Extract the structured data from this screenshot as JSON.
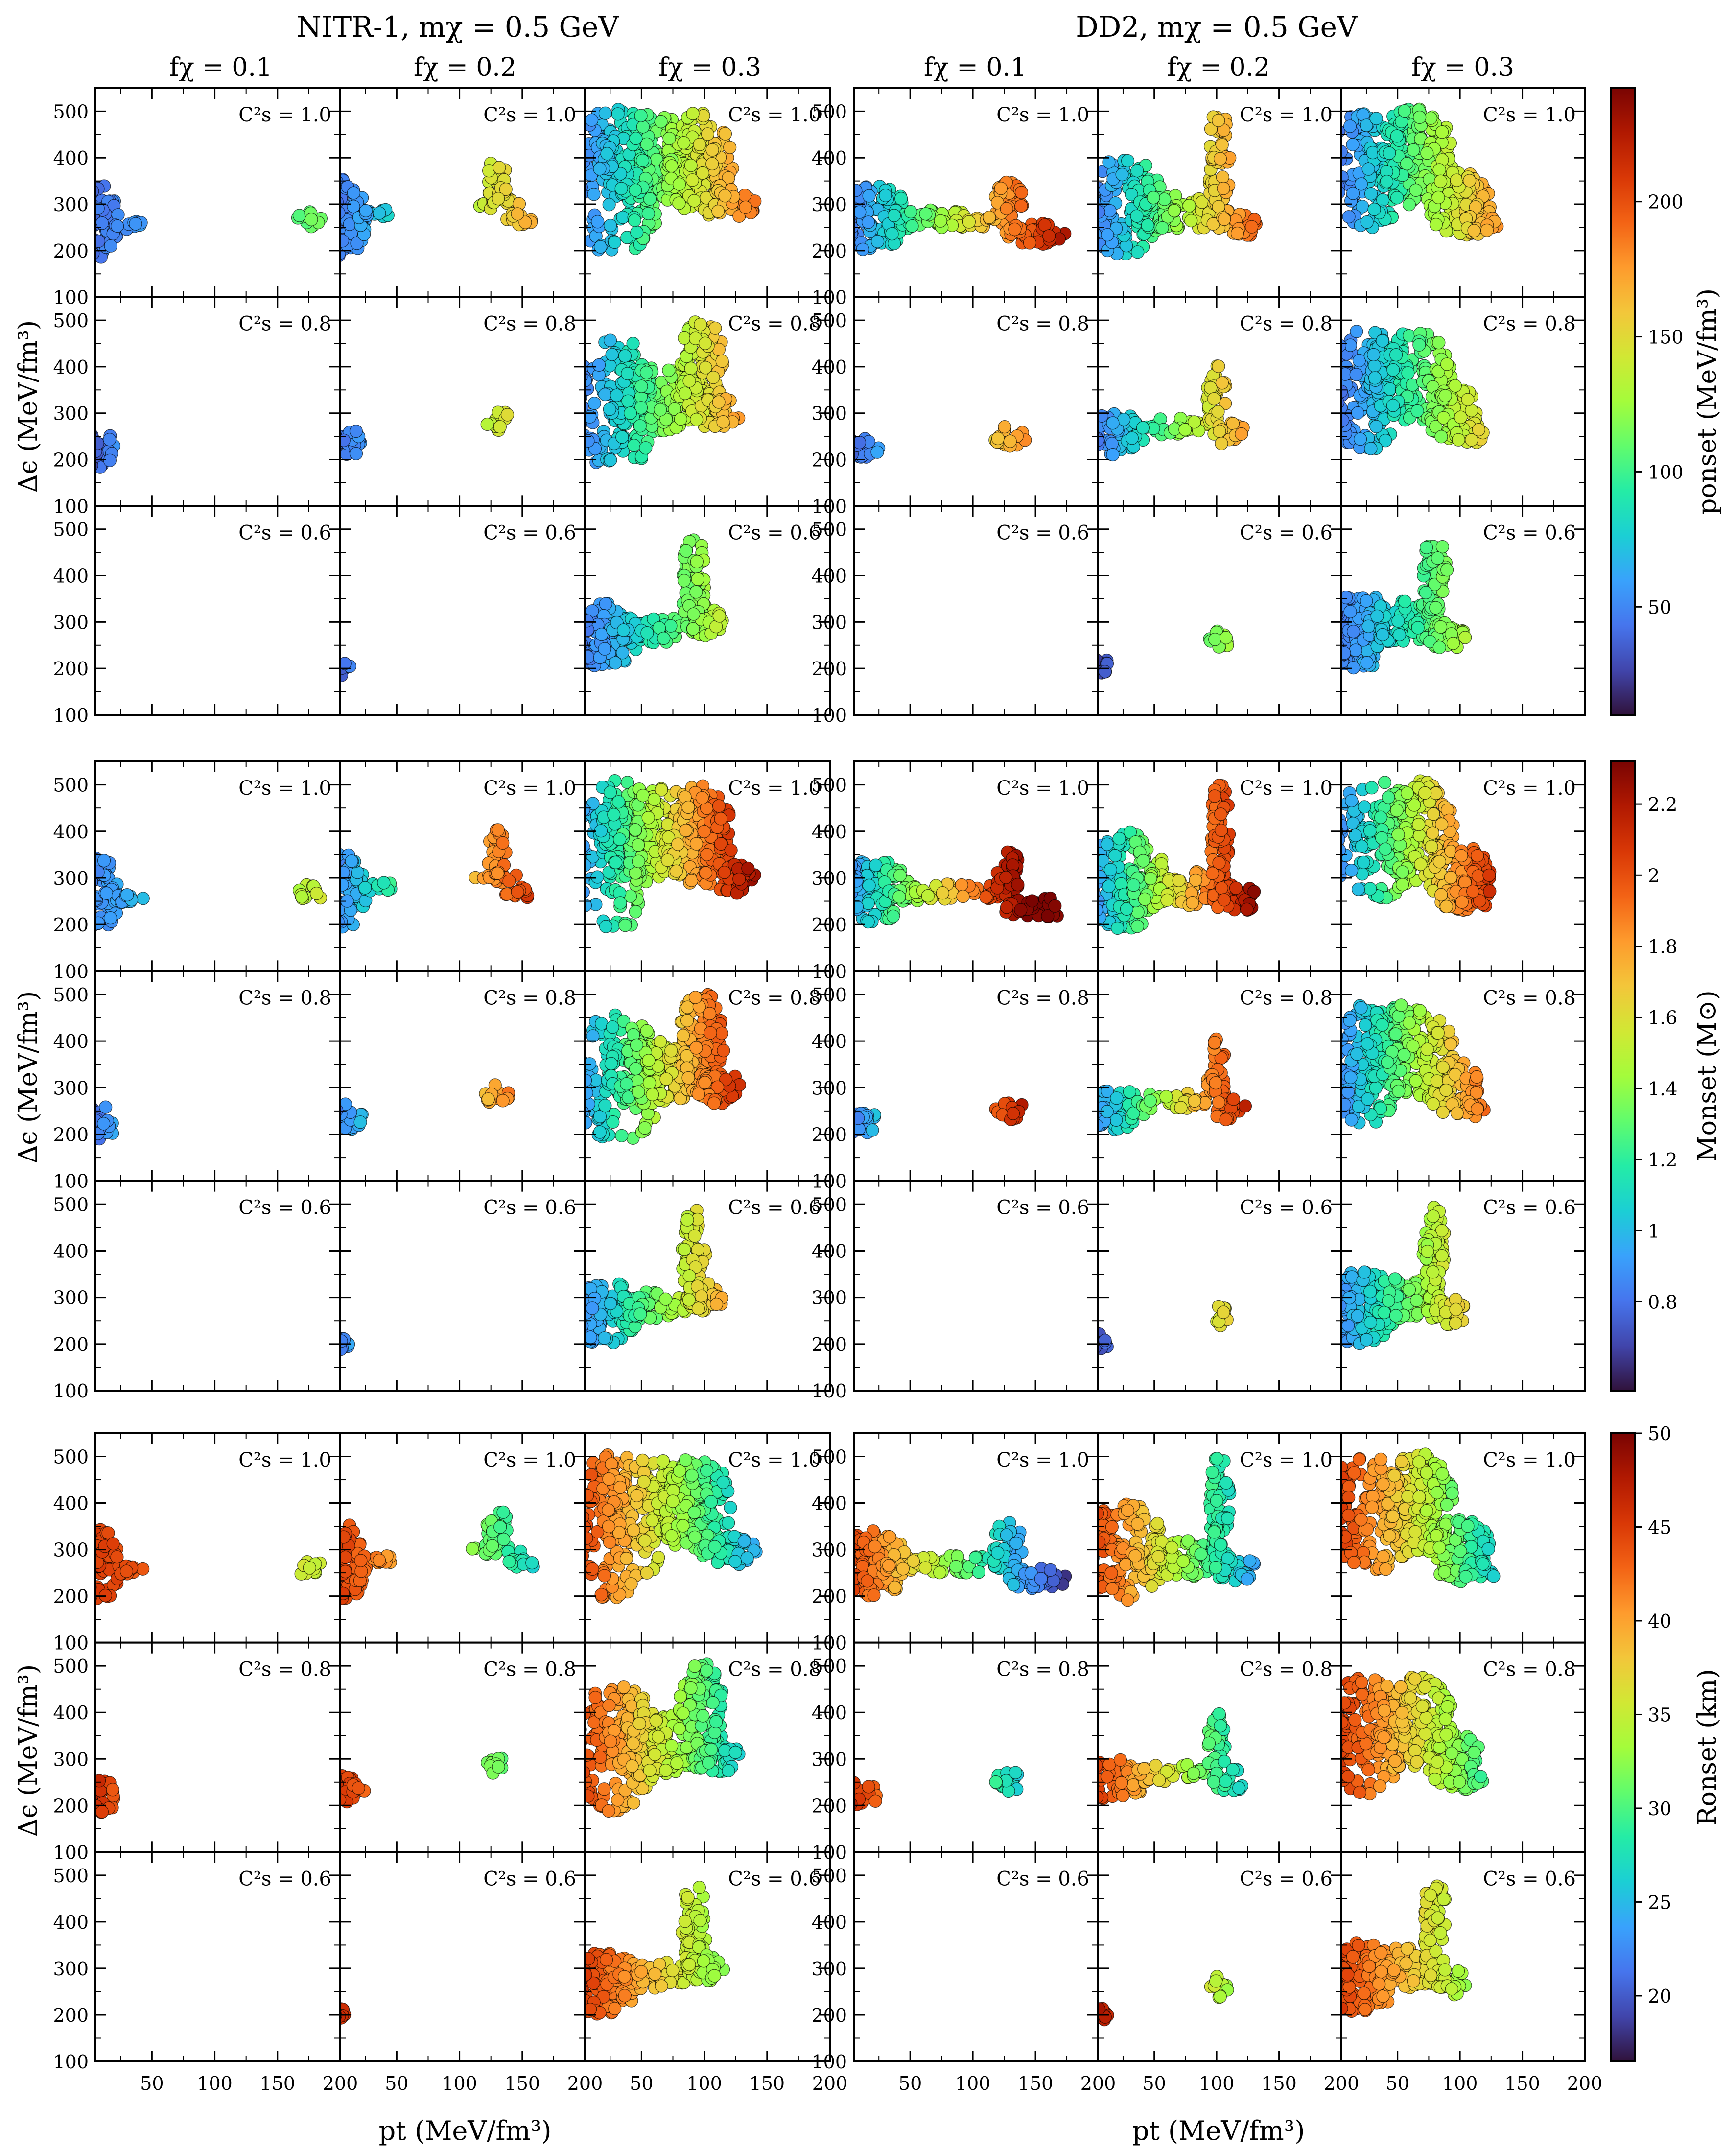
{
  "figure": {
    "group_titles": [
      "NITR-1, mχ = 0.5 GeV",
      "DD2, mχ = 0.5 GeV"
    ],
    "column_titles": [
      "fχ = 0.1",
      "fχ = 0.2",
      "fχ = 0.3"
    ],
    "row_labels": [
      "C²s = 1.0",
      "C²s = 0.8",
      "C²s = 0.6"
    ],
    "ylabel": "Δϵ (MeV/fm³)",
    "xlabel": "pt (MeV/fm³)",
    "colorbars": [
      {
        "label": "ponset (MeV/fm³)",
        "range": [
          10,
          242
        ],
        "ticks": [
          50,
          100,
          150,
          200
        ]
      },
      {
        "label": "Monset (M⊙)",
        "range": [
          0.55,
          2.32
        ],
        "ticks": [
          0.8,
          1.0,
          1.2,
          1.4,
          1.6,
          1.8,
          2.0,
          2.2
        ]
      },
      {
        "label": "Ronset (km)",
        "range": [
          16.5,
          50
        ],
        "ticks": [
          20,
          25,
          30,
          35,
          40,
          45,
          50
        ]
      }
    ]
  },
  "chart_data": {
    "type": "scatter",
    "xlim": [
      5,
      200
    ],
    "ylim": [
      100,
      550
    ],
    "xticks": [
      50,
      100,
      150,
      200
    ],
    "yticks": [
      100,
      200,
      300,
      400,
      500
    ],
    "colormap": [
      "#30123b",
      "#4145ab",
      "#4675ed",
      "#39a2fc",
      "#1bcfd4",
      "#24eca6",
      "#61fc6c",
      "#a4fc3b",
      "#d1e834",
      "#f3c63a",
      "#fe9b2d",
      "#f36315",
      "#d93806",
      "#b11901",
      "#7a0402"
    ],
    "panel_shapes": {
      "nitr": [
        [
          {
            "blobs": [
              {
                "x": 8,
                "y": 265,
                "rx": 16,
                "ry": 80
              },
              {
                "x": 32,
                "y": 255,
                "rx": 12,
                "ry": 10
              },
              {
                "x": 175,
                "y": 265,
                "rx": 10,
                "ry": 22
              }
            ],
            "col": [
              0.12,
              0.45
            ]
          },
          {
            "blobs": [
              {
                "x": 8,
                "y": 270,
                "rx": 18,
                "ry": 85
              },
              {
                "x": 36,
                "y": 280,
                "rx": 16,
                "ry": 10
              },
              {
                "x": 130,
                "y": 300,
                "rx": 20,
                "ry": 12
              },
              {
                "x": 130,
                "y": 350,
                "rx": 8,
                "ry": 55
              },
              {
                "x": 148,
                "y": 268,
                "rx": 12,
                "ry": 14
              }
            ],
            "col": [
              0.1,
              0.7
            ]
          },
          {
            "blobs": [
              {
                "x": 30,
                "y": 350,
                "rx": 38,
                "ry": 160
              },
              {
                "x": 60,
                "y": 400,
                "rx": 45,
                "ry": 95
              },
              {
                "x": 95,
                "y": 390,
                "rx": 28,
                "ry": 110
              },
              {
                "x": 120,
                "y": 300,
                "rx": 22,
                "ry": 35
              }
            ],
            "col": [
              0.12,
              0.78
            ]
          }
        ],
        [
          {
            "blobs": [
              {
                "x": 8,
                "y": 222,
                "rx": 14,
                "ry": 40
              }
            ],
            "col": [
              0.05,
              0.2
            ]
          },
          {
            "blobs": [
              {
                "x": 10,
                "y": 235,
                "rx": 16,
                "ry": 30
              },
              {
                "x": 130,
                "y": 285,
                "rx": 10,
                "ry": 22
              }
            ],
            "col": [
              0.1,
              0.6
            ]
          },
          {
            "blobs": [
              {
                "x": 30,
                "y": 320,
                "rx": 38,
                "ry": 140
              },
              {
                "x": 60,
                "y": 330,
                "rx": 40,
                "ry": 70
              },
              {
                "x": 98,
                "y": 400,
                "rx": 18,
                "ry": 110
              },
              {
                "x": 110,
                "y": 300,
                "rx": 20,
                "ry": 35
              }
            ],
            "col": [
              0.12,
              0.72
            ]
          }
        ],
        [
          {
            "blobs": [],
            "col": [
              0,
              0
            ]
          },
          {
            "blobs": [
              {
                "x": 7,
                "y": 200,
                "rx": 6,
                "ry": 16
              }
            ],
            "col": [
              0.08,
              0.18
            ]
          },
          {
            "blobs": [
              {
                "x": 20,
                "y": 270,
                "rx": 30,
                "ry": 70
              },
              {
                "x": 60,
                "y": 285,
                "rx": 35,
                "ry": 30
              },
              {
                "x": 92,
                "y": 380,
                "rx": 10,
                "ry": 110
              },
              {
                "x": 100,
                "y": 300,
                "rx": 16,
                "ry": 30
              }
            ],
            "col": [
              0.1,
              0.55
            ]
          }
        ]
      ],
      "dd2": [
        [
          {
            "blobs": [
              {
                "x": 20,
                "y": 270,
                "rx": 30,
                "ry": 70
              },
              {
                "x": 80,
                "y": 268,
                "rx": 50,
                "ry": 20
              },
              {
                "x": 128,
                "y": 310,
                "rx": 12,
                "ry": 50
              },
              {
                "x": 150,
                "y": 235,
                "rx": 25,
                "ry": 25
              }
            ],
            "col": [
              0.1,
              0.95
            ]
          },
          {
            "blobs": [
              {
                "x": 25,
                "y": 295,
                "rx": 35,
                "ry": 105
              },
              {
                "x": 70,
                "y": 280,
                "rx": 40,
                "ry": 40
              },
              {
                "x": 102,
                "y": 390,
                "rx": 9,
                "ry": 115
              },
              {
                "x": 115,
                "y": 255,
                "rx": 18,
                "ry": 30
              }
            ],
            "col": [
              0.1,
              0.8
            ]
          },
          {
            "blobs": [
              {
                "x": 30,
                "y": 380,
                "rx": 38,
                "ry": 130
              },
              {
                "x": 65,
                "y": 400,
                "rx": 30,
                "ry": 110
              },
              {
                "x": 100,
                "y": 300,
                "rx": 25,
                "ry": 70
              },
              {
                "x": 115,
                "y": 255,
                "rx": 15,
                "ry": 22
              }
            ],
            "col": [
              0.1,
              0.72
            ]
          }
        ],
        [
          {
            "blobs": [
              {
                "x": 10,
                "y": 225,
                "rx": 16,
                "ry": 25
              },
              {
                "x": 130,
                "y": 250,
                "rx": 14,
                "ry": 22
              }
            ],
            "col": [
              0.08,
              0.75
            ]
          },
          {
            "blobs": [
              {
                "x": 18,
                "y": 255,
                "rx": 25,
                "ry": 45
              },
              {
                "x": 65,
                "y": 270,
                "rx": 30,
                "ry": 20
              },
              {
                "x": 100,
                "y": 330,
                "rx": 8,
                "ry": 75
              },
              {
                "x": 110,
                "y": 255,
                "rx": 14,
                "ry": 25
              }
            ],
            "col": [
              0.1,
              0.72
            ]
          },
          {
            "blobs": [
              {
                "x": 25,
                "y": 350,
                "rx": 32,
                "ry": 130
              },
              {
                "x": 60,
                "y": 380,
                "rx": 35,
                "ry": 100
              },
              {
                "x": 95,
                "y": 300,
                "rx": 22,
                "ry": 60
              },
              {
                "x": 108,
                "y": 252,
                "rx": 12,
                "ry": 18
              }
            ],
            "col": [
              0.1,
              0.62
            ]
          }
        ],
        [
          {
            "blobs": [],
            "col": [
              0,
              0
            ]
          },
          {
            "blobs": [
              {
                "x": 7,
                "y": 205,
                "rx": 7,
                "ry": 18
              },
              {
                "x": 102,
                "y": 260,
                "rx": 8,
                "ry": 25
              }
            ],
            "col": [
              0.05,
              0.5
            ]
          },
          {
            "blobs": [
              {
                "x": 20,
                "y": 280,
                "rx": 30,
                "ry": 80
              },
              {
                "x": 55,
                "y": 300,
                "rx": 30,
                "ry": 45
              },
              {
                "x": 80,
                "y": 390,
                "rx": 10,
                "ry": 105
              },
              {
                "x": 90,
                "y": 270,
                "rx": 16,
                "ry": 30
              }
            ],
            "col": [
              0.1,
              0.52
            ]
          }
        ]
      ]
    }
  }
}
